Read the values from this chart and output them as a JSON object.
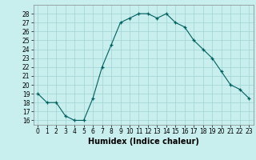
{
  "x": [
    0,
    1,
    2,
    3,
    4,
    5,
    6,
    7,
    8,
    9,
    10,
    11,
    12,
    13,
    14,
    15,
    16,
    17,
    18,
    19,
    20,
    21,
    22,
    23
  ],
  "y": [
    19,
    18,
    18,
    16.5,
    16,
    16,
    18.5,
    22,
    24.5,
    27,
    27.5,
    28,
    28,
    27.5,
    28,
    27,
    26.5,
    25,
    24,
    23,
    21.5,
    20,
    19.5,
    18.5
  ],
  "xlabel": "Humidex (Indice chaleur)",
  "ylim": [
    15.5,
    29
  ],
  "xlim": [
    -0.5,
    23.5
  ],
  "yticks": [
    16,
    17,
    18,
    19,
    20,
    21,
    22,
    23,
    24,
    25,
    26,
    27,
    28
  ],
  "xticks": [
    0,
    1,
    2,
    3,
    4,
    5,
    6,
    7,
    8,
    9,
    10,
    11,
    12,
    13,
    14,
    15,
    16,
    17,
    18,
    19,
    20,
    21,
    22,
    23
  ],
  "line_color": "#006060",
  "marker_color": "#006060",
  "bg_color": "#c8eeed",
  "grid_color": "#a0d4d4",
  "tick_fontsize": 5.5,
  "label_fontsize": 7
}
